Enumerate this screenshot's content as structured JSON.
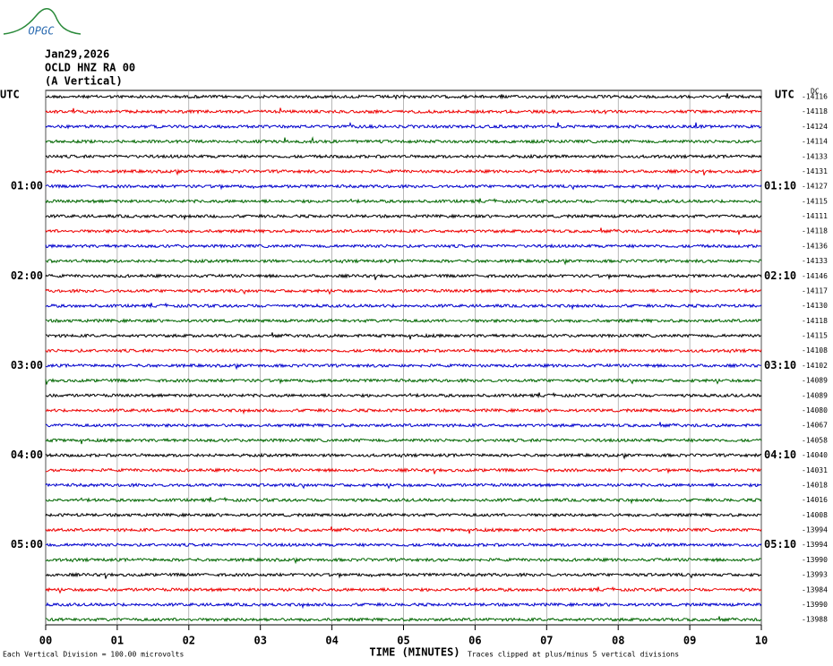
{
  "header": {
    "logo": "OPGC",
    "date": "Jan29,2026",
    "station": "OCLD HNZ RA 00",
    "component": "(A Vertical)",
    "dc_label": "DC"
  },
  "left_labels": [
    "UTC",
    "01:00",
    "02:00",
    "03:00",
    "04:00",
    "05:00"
  ],
  "right_labels": [
    "UTC",
    "01:10",
    "02:10",
    "03:10",
    "04:10",
    "05:10"
  ],
  "trace_offsets": [
    "-14116",
    "-14118",
    "-14124",
    "-14114",
    "-14133",
    "-14131",
    "-14127",
    "-14115",
    "-14111",
    "-14118",
    "-14136",
    "-14133",
    "-14146",
    "-14117",
    "-14130",
    "-14118",
    "-14115",
    "-14108",
    "-14102",
    "-14089",
    "-14089",
    "-14080",
    "-14067",
    "-14058",
    "-14040",
    "-14031",
    "-14018",
    "-14016",
    "-14008",
    "-13994",
    "-13994",
    "-13990",
    "-13993",
    "-13984",
    "-13990",
    "-13988"
  ],
  "x_ticks": [
    "00",
    "01",
    "02",
    "03",
    "04",
    "05",
    "06",
    "07",
    "08",
    "09",
    "10"
  ],
  "footer": {
    "scale": "Each Vertical Division =  100.00 microvolts",
    "x_label": "TIME (MINUTES)",
    "clip_note": "Traces clipped at plus/minus 5 vertical divisions"
  }
}
